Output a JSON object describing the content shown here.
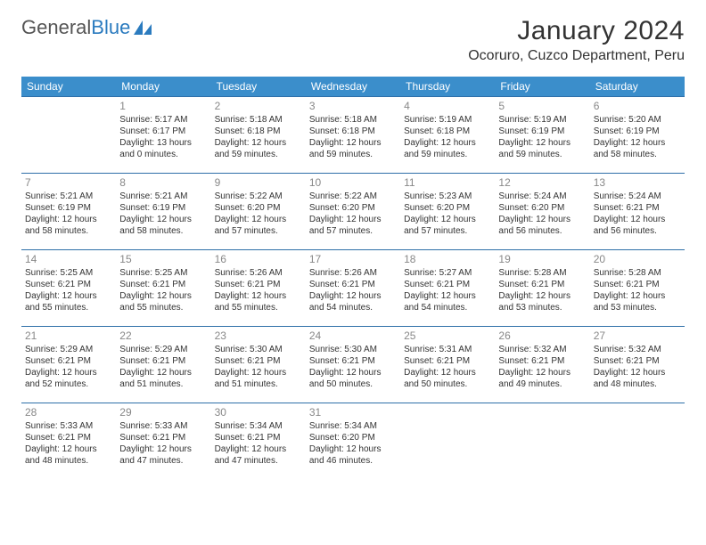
{
  "brand": {
    "part1": "General",
    "part2": "Blue"
  },
  "title": "January 2024",
  "location": "Ocoruro, Cuzco Department, Peru",
  "colors": {
    "header_bg": "#3b8ecb",
    "header_text": "#ffffff",
    "row_border": "#2e6fa8",
    "daynum": "#888888",
    "body_text": "#333333",
    "brand_gray": "#555555",
    "brand_blue": "#2b7bbf",
    "background": "#ffffff"
  },
  "weekdays": [
    "Sunday",
    "Monday",
    "Tuesday",
    "Wednesday",
    "Thursday",
    "Friday",
    "Saturday"
  ],
  "cells": [
    [
      null,
      {
        "n": "1",
        "sr": "5:17 AM",
        "ss": "6:17 PM",
        "dl": "13 hours and 0 minutes."
      },
      {
        "n": "2",
        "sr": "5:18 AM",
        "ss": "6:18 PM",
        "dl": "12 hours and 59 minutes."
      },
      {
        "n": "3",
        "sr": "5:18 AM",
        "ss": "6:18 PM",
        "dl": "12 hours and 59 minutes."
      },
      {
        "n": "4",
        "sr": "5:19 AM",
        "ss": "6:18 PM",
        "dl": "12 hours and 59 minutes."
      },
      {
        "n": "5",
        "sr": "5:19 AM",
        "ss": "6:19 PM",
        "dl": "12 hours and 59 minutes."
      },
      {
        "n": "6",
        "sr": "5:20 AM",
        "ss": "6:19 PM",
        "dl": "12 hours and 58 minutes."
      }
    ],
    [
      {
        "n": "7",
        "sr": "5:21 AM",
        "ss": "6:19 PM",
        "dl": "12 hours and 58 minutes."
      },
      {
        "n": "8",
        "sr": "5:21 AM",
        "ss": "6:19 PM",
        "dl": "12 hours and 58 minutes."
      },
      {
        "n": "9",
        "sr": "5:22 AM",
        "ss": "6:20 PM",
        "dl": "12 hours and 57 minutes."
      },
      {
        "n": "10",
        "sr": "5:22 AM",
        "ss": "6:20 PM",
        "dl": "12 hours and 57 minutes."
      },
      {
        "n": "11",
        "sr": "5:23 AM",
        "ss": "6:20 PM",
        "dl": "12 hours and 57 minutes."
      },
      {
        "n": "12",
        "sr": "5:24 AM",
        "ss": "6:20 PM",
        "dl": "12 hours and 56 minutes."
      },
      {
        "n": "13",
        "sr": "5:24 AM",
        "ss": "6:21 PM",
        "dl": "12 hours and 56 minutes."
      }
    ],
    [
      {
        "n": "14",
        "sr": "5:25 AM",
        "ss": "6:21 PM",
        "dl": "12 hours and 55 minutes."
      },
      {
        "n": "15",
        "sr": "5:25 AM",
        "ss": "6:21 PM",
        "dl": "12 hours and 55 minutes."
      },
      {
        "n": "16",
        "sr": "5:26 AM",
        "ss": "6:21 PM",
        "dl": "12 hours and 55 minutes."
      },
      {
        "n": "17",
        "sr": "5:26 AM",
        "ss": "6:21 PM",
        "dl": "12 hours and 54 minutes."
      },
      {
        "n": "18",
        "sr": "5:27 AM",
        "ss": "6:21 PM",
        "dl": "12 hours and 54 minutes."
      },
      {
        "n": "19",
        "sr": "5:28 AM",
        "ss": "6:21 PM",
        "dl": "12 hours and 53 minutes."
      },
      {
        "n": "20",
        "sr": "5:28 AM",
        "ss": "6:21 PM",
        "dl": "12 hours and 53 minutes."
      }
    ],
    [
      {
        "n": "21",
        "sr": "5:29 AM",
        "ss": "6:21 PM",
        "dl": "12 hours and 52 minutes."
      },
      {
        "n": "22",
        "sr": "5:29 AM",
        "ss": "6:21 PM",
        "dl": "12 hours and 51 minutes."
      },
      {
        "n": "23",
        "sr": "5:30 AM",
        "ss": "6:21 PM",
        "dl": "12 hours and 51 minutes."
      },
      {
        "n": "24",
        "sr": "5:30 AM",
        "ss": "6:21 PM",
        "dl": "12 hours and 50 minutes."
      },
      {
        "n": "25",
        "sr": "5:31 AM",
        "ss": "6:21 PM",
        "dl": "12 hours and 50 minutes."
      },
      {
        "n": "26",
        "sr": "5:32 AM",
        "ss": "6:21 PM",
        "dl": "12 hours and 49 minutes."
      },
      {
        "n": "27",
        "sr": "5:32 AM",
        "ss": "6:21 PM",
        "dl": "12 hours and 48 minutes."
      }
    ],
    [
      {
        "n": "28",
        "sr": "5:33 AM",
        "ss": "6:21 PM",
        "dl": "12 hours and 48 minutes."
      },
      {
        "n": "29",
        "sr": "5:33 AM",
        "ss": "6:21 PM",
        "dl": "12 hours and 47 minutes."
      },
      {
        "n": "30",
        "sr": "5:34 AM",
        "ss": "6:21 PM",
        "dl": "12 hours and 47 minutes."
      },
      {
        "n": "31",
        "sr": "5:34 AM",
        "ss": "6:20 PM",
        "dl": "12 hours and 46 minutes."
      },
      null,
      null,
      null
    ]
  ],
  "labels": {
    "sunrise": "Sunrise:",
    "sunset": "Sunset:",
    "daylight": "Daylight:"
  }
}
